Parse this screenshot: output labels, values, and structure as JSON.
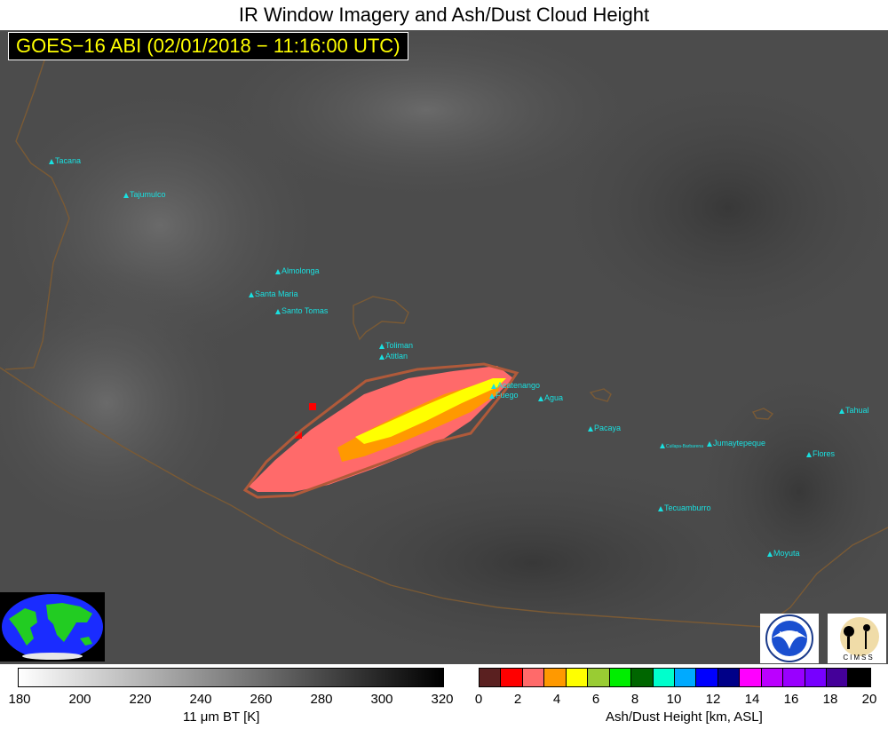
{
  "title": "IR Window Imagery and Ash/Dust Cloud Height",
  "timestamp": "GOES−16 ABI (02/01/2018 − 11:16:00 UTC)",
  "volcanoes": [
    {
      "name": "Tacana"
    },
    {
      "name": "Tajumulco"
    },
    {
      "name": "Almolonga"
    },
    {
      "name": "Santa Maria"
    },
    {
      "name": "Santo Tomas"
    },
    {
      "name": "Toliman"
    },
    {
      "name": "Atitlan"
    },
    {
      "name": "Acatenango"
    },
    {
      "name": "Fuego"
    },
    {
      "name": "Agua"
    },
    {
      "name": "Pacaya"
    },
    {
      "name": "Cuilapa-Barbarena"
    },
    {
      "name": "Jumaytepeque"
    },
    {
      "name": "Tecuamburro"
    },
    {
      "name": "Moyuta"
    },
    {
      "name": "Flores"
    },
    {
      "name": "Tahual"
    }
  ],
  "bt_colorbar": {
    "label": "11 μm BT [K]",
    "ticks": [
      "180",
      "200",
      "220",
      "240",
      "260",
      "280",
      "300",
      "320"
    ],
    "gradient_from": "#ffffff",
    "gradient_to": "#000000"
  },
  "ash_colorbar": {
    "label": "Ash/Dust Height [km, ASL]",
    "ticks": [
      "0",
      "2",
      "4",
      "6",
      "8",
      "10",
      "12",
      "14",
      "16",
      "18",
      "20"
    ],
    "colors": [
      "#5a2020",
      "#ff0000",
      "#ff6a6a",
      "#ff9900",
      "#ffff00",
      "#99cc33",
      "#00ee00",
      "#006600",
      "#00ffcc",
      "#00aaff",
      "#0000ff",
      "#000088",
      "#ff00ff",
      "#bb00ff",
      "#9900ff",
      "#7700ff",
      "#440099",
      "#000000"
    ]
  },
  "logos": {
    "noaa": "NOAA",
    "cimss": "CIMSS"
  }
}
